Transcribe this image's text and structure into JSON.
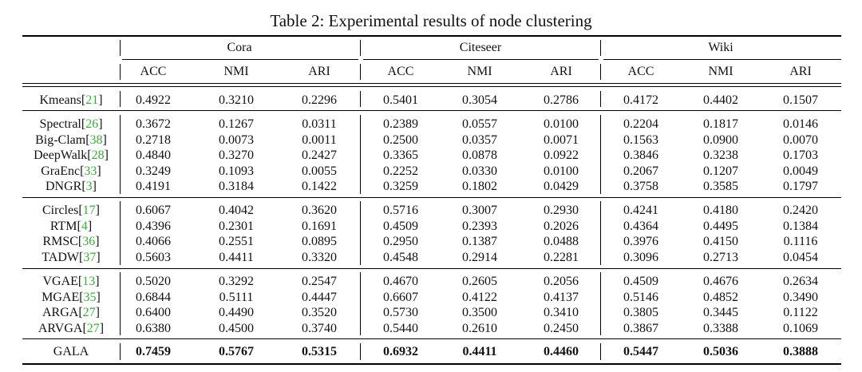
{
  "caption": "Table 2: Experimental results of node clustering",
  "datasets": [
    "Cora",
    "Citeseer",
    "Wiki"
  ],
  "metrics": [
    "ACC",
    "NMI",
    "ARI"
  ],
  "groups": [
    [
      {
        "name": "Kmeans",
        "ref": "21",
        "values": [
          "0.4922",
          "0.3210",
          "0.2296",
          "0.5401",
          "0.3054",
          "0.2786",
          "0.4172",
          "0.4402",
          "0.1507"
        ]
      }
    ],
    [
      {
        "name": "Spectral",
        "ref": "26",
        "values": [
          "0.3672",
          "0.1267",
          "0.0311",
          "0.2389",
          "0.0557",
          "0.0100",
          "0.2204",
          "0.1817",
          "0.0146"
        ]
      },
      {
        "name": "Big-Clam",
        "ref": "38",
        "values": [
          "0.2718",
          "0.0073",
          "0.0011",
          "0.2500",
          "0.0357",
          "0.0071",
          "0.1563",
          "0.0900",
          "0.0070"
        ]
      },
      {
        "name": "DeepWalk",
        "ref": "28",
        "values": [
          "0.4840",
          "0.3270",
          "0.2427",
          "0.3365",
          "0.0878",
          "0.0922",
          "0.3846",
          "0.3238",
          "0.1703"
        ]
      },
      {
        "name": "GraEnc",
        "ref": "33",
        "values": [
          "0.3249",
          "0.1093",
          "0.0055",
          "0.2252",
          "0.0330",
          "0.0100",
          "0.2067",
          "0.1207",
          "0.0049"
        ]
      },
      {
        "name": "DNGR",
        "ref": "3",
        "values": [
          "0.4191",
          "0.3184",
          "0.1422",
          "0.3259",
          "0.1802",
          "0.0429",
          "0.3758",
          "0.3585",
          "0.1797"
        ]
      }
    ],
    [
      {
        "name": "Circles",
        "ref": "17",
        "values": [
          "0.6067",
          "0.4042",
          "0.3620",
          "0.5716",
          "0.3007",
          "0.2930",
          "0.4241",
          "0.4180",
          "0.2420"
        ]
      },
      {
        "name": "RTM",
        "ref": "4",
        "values": [
          "0.4396",
          "0.2301",
          "0.1691",
          "0.4509",
          "0.2393",
          "0.2026",
          "0.4364",
          "0.4495",
          "0.1384"
        ]
      },
      {
        "name": "RMSC",
        "ref": "36",
        "values": [
          "0.4066",
          "0.2551",
          "0.0895",
          "0.2950",
          "0.1387",
          "0.0488",
          "0.3976",
          "0.4150",
          "0.1116"
        ]
      },
      {
        "name": "TADW",
        "ref": "37",
        "values": [
          "0.5603",
          "0.4411",
          "0.3320",
          "0.4548",
          "0.2914",
          "0.2281",
          "0.3096",
          "0.2713",
          "0.0454"
        ]
      }
    ],
    [
      {
        "name": "VGAE",
        "ref": "13",
        "values": [
          "0.5020",
          "0.3292",
          "0.2547",
          "0.4670",
          "0.2605",
          "0.2056",
          "0.4509",
          "0.4676",
          "0.2634"
        ]
      },
      {
        "name": "MGAE",
        "ref": "35",
        "values": [
          "0.6844",
          "0.5111",
          "0.4447",
          "0.6607",
          "0.4122",
          "0.4137",
          "0.5146",
          "0.4852",
          "0.3490"
        ]
      },
      {
        "name": "ARGA",
        "ref": "27",
        "values": [
          "0.6400",
          "0.4490",
          "0.3520",
          "0.5730",
          "0.3500",
          "0.3410",
          "0.3805",
          "0.3445",
          "0.1122"
        ]
      },
      {
        "name": "ARVGA",
        "ref": "27",
        "values": [
          "0.6380",
          "0.4500",
          "0.3740",
          "0.5440",
          "0.2610",
          "0.2450",
          "0.3867",
          "0.3388",
          "0.1069"
        ]
      }
    ],
    [
      {
        "name": "GALA",
        "ref": "",
        "bold": true,
        "values": [
          "0.7459",
          "0.5767",
          "0.5315",
          "0.6932",
          "0.4411",
          "0.4460",
          "0.5447",
          "0.5036",
          "0.3888"
        ]
      }
    ]
  ]
}
